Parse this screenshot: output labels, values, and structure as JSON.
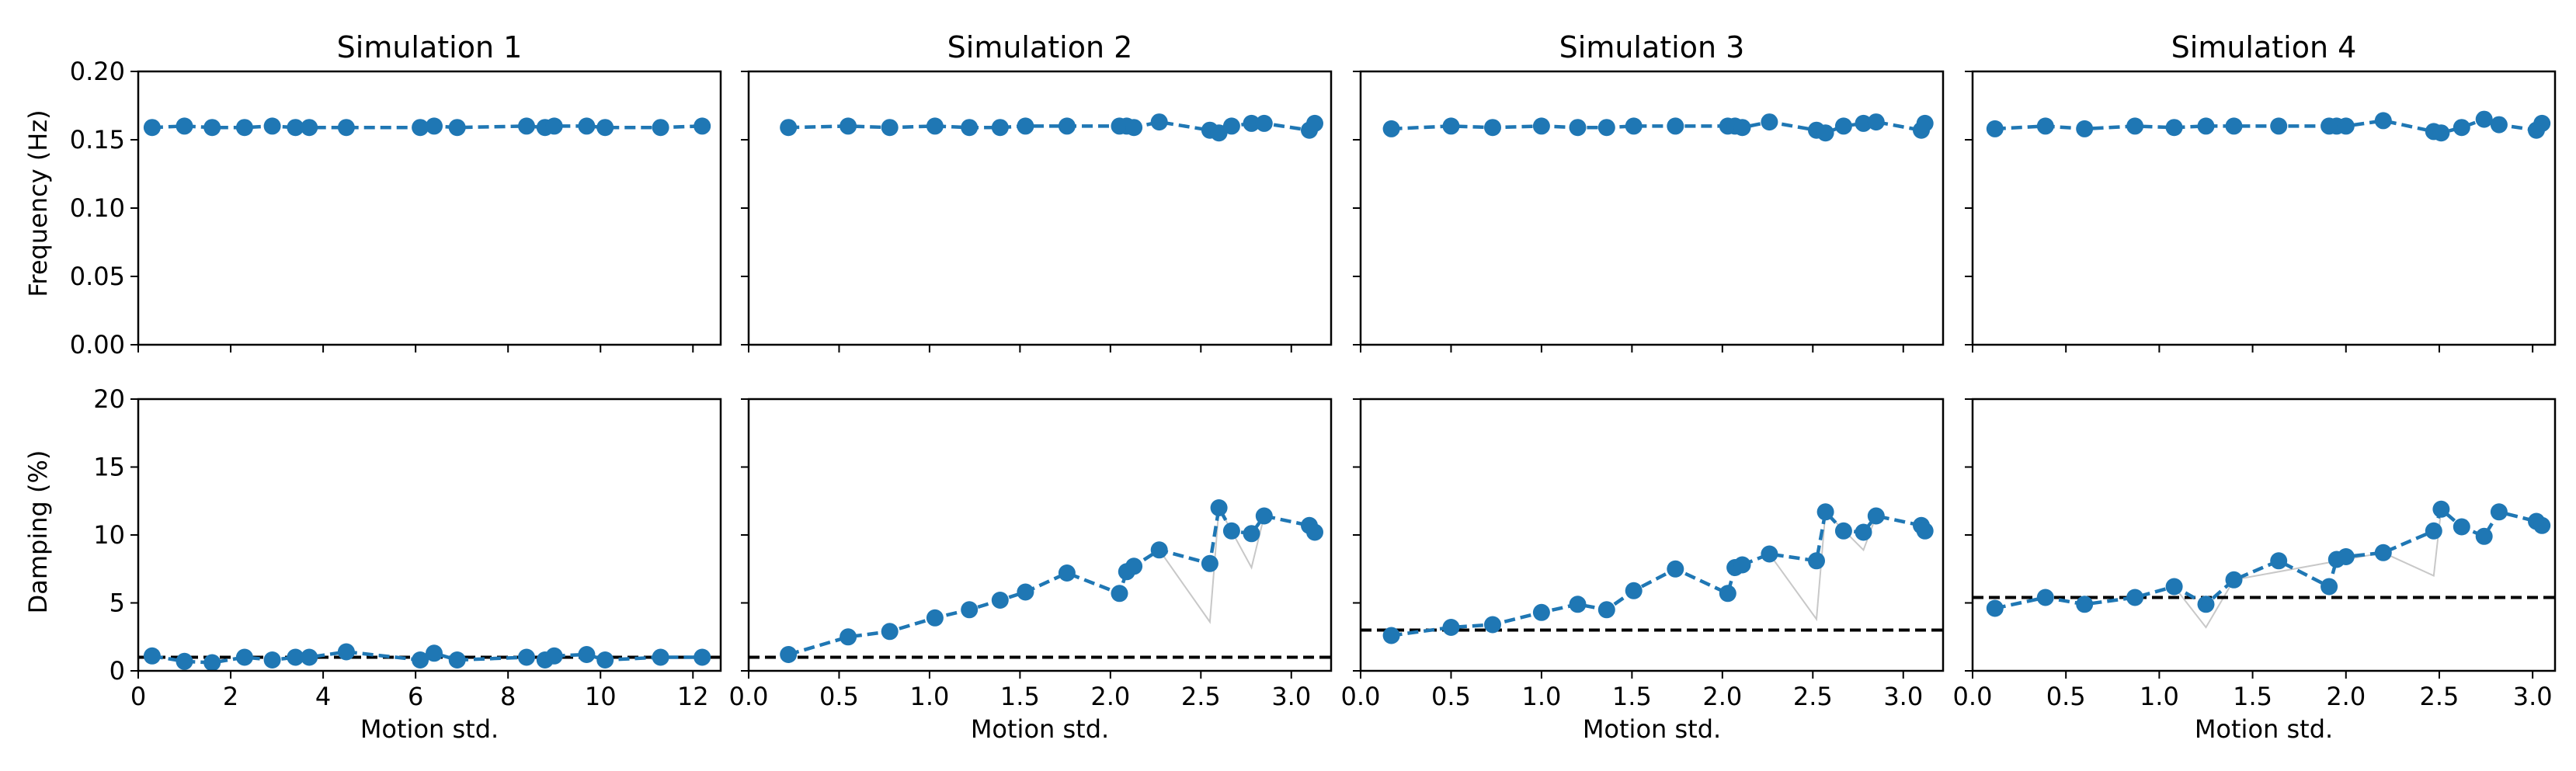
{
  "chart_data": {
    "type": "line",
    "layout": "2 rows x 4 columns, shared y-axis per row",
    "row_ylabels": [
      "Frequency (Hz)",
      "Damping (%)"
    ],
    "xlabel": "Motion std.",
    "freq_ylim": [
      0,
      0.2
    ],
    "freq_yticks": [
      0.0,
      0.05,
      0.1,
      0.15,
      0.2
    ],
    "freq_ytick_labels": [
      "0.00",
      "0.05",
      "0.10",
      "0.15",
      "0.20"
    ],
    "damp_ylim": [
      0,
      20
    ],
    "damp_yticks": [
      0,
      5,
      10,
      15,
      20
    ],
    "damp_ytick_labels": [
      "0",
      "5",
      "10",
      "15",
      "20"
    ],
    "colors": {
      "series": "#1f77b4",
      "reference": "#000000",
      "faint": "#c8c8c8"
    },
    "panels": [
      {
        "title": "Simulation 1",
        "xlim": [
          0,
          12.6
        ],
        "xticks": [
          0,
          2,
          4,
          6,
          8,
          10,
          12
        ],
        "xtick_labels": [
          "0",
          "2",
          "4",
          "6",
          "8",
          "10",
          "12"
        ],
        "reference_damping": 1.0,
        "x": [
          0.3,
          1.0,
          1.6,
          2.3,
          2.9,
          3.4,
          3.7,
          4.5,
          6.1,
          6.4,
          6.9,
          8.4,
          8.8,
          9.0,
          9.7,
          10.1,
          11.3,
          12.2
        ],
        "frequency": [
          0.159,
          0.16,
          0.159,
          0.159,
          0.16,
          0.159,
          0.159,
          0.159,
          0.159,
          0.16,
          0.159,
          0.16,
          0.159,
          0.16,
          0.16,
          0.159,
          0.159,
          0.16
        ],
        "damping": [
          1.1,
          0.7,
          0.6,
          1.0,
          0.8,
          1.0,
          1.0,
          1.4,
          0.8,
          1.3,
          0.8,
          1.0,
          0.8,
          1.1,
          1.2,
          0.8,
          1.0,
          1.0
        ],
        "faint_x": [],
        "faint_damping": []
      },
      {
        "title": "Simulation 2",
        "xlim": [
          0,
          3.22
        ],
        "xticks": [
          0.0,
          0.5,
          1.0,
          1.5,
          2.0,
          2.5,
          3.0
        ],
        "xtick_labels": [
          "0.0",
          "0.5",
          "1.0",
          "1.5",
          "2.0",
          "2.5",
          "3.0"
        ],
        "reference_damping": 1.0,
        "x": [
          0.22,
          0.55,
          0.78,
          1.03,
          1.22,
          1.39,
          1.53,
          1.76,
          2.05,
          2.09,
          2.13,
          2.27,
          2.55,
          2.6,
          2.67,
          2.78,
          2.85,
          3.1,
          3.13
        ],
        "frequency": [
          0.159,
          0.16,
          0.159,
          0.16,
          0.159,
          0.159,
          0.16,
          0.16,
          0.16,
          0.16,
          0.159,
          0.163,
          0.157,
          0.155,
          0.16,
          0.162,
          0.162,
          0.157,
          0.162
        ],
        "damping": [
          1.2,
          2.5,
          2.9,
          3.9,
          4.5,
          5.2,
          5.8,
          7.2,
          5.7,
          7.3,
          7.7,
          8.9,
          7.9,
          12.0,
          10.3,
          10.1,
          11.4,
          10.7,
          10.2
        ],
        "faint_x": [
          2.27,
          2.55,
          2.6,
          2.78,
          2.85
        ],
        "faint_damping": [
          8.9,
          3.6,
          12.0,
          7.6,
          11.4
        ]
      },
      {
        "title": "Simulation 3",
        "xlim": [
          0,
          3.22
        ],
        "xticks": [
          0.0,
          0.5,
          1.0,
          1.5,
          2.0,
          2.5,
          3.0
        ],
        "xtick_labels": [
          "0.0",
          "0.5",
          "1.0",
          "1.5",
          "2.0",
          "2.5",
          "3.0"
        ],
        "reference_damping": 3.0,
        "x": [
          0.17,
          0.5,
          0.73,
          1.0,
          1.2,
          1.36,
          1.51,
          1.74,
          2.03,
          2.07,
          2.11,
          2.26,
          2.52,
          2.57,
          2.67,
          2.78,
          2.85,
          3.1,
          3.12
        ],
        "frequency": [
          0.158,
          0.16,
          0.159,
          0.16,
          0.159,
          0.159,
          0.16,
          0.16,
          0.16,
          0.16,
          0.159,
          0.163,
          0.157,
          0.155,
          0.16,
          0.162,
          0.163,
          0.157,
          0.162
        ],
        "damping": [
          2.6,
          3.2,
          3.4,
          4.3,
          4.9,
          4.5,
          5.9,
          7.5,
          5.7,
          7.6,
          7.8,
          8.6,
          8.1,
          11.7,
          10.3,
          10.2,
          11.4,
          10.7,
          10.3
        ],
        "faint_x": [
          2.26,
          2.52,
          2.57,
          2.78,
          2.85
        ],
        "faint_damping": [
          8.6,
          3.8,
          11.7,
          8.9,
          11.4
        ]
      },
      {
        "title": "Simulation 4",
        "xlim": [
          0,
          3.12
        ],
        "xticks": [
          0.0,
          0.5,
          1.0,
          1.5,
          2.0,
          2.5,
          3.0
        ],
        "xtick_labels": [
          "0.0",
          "0.5",
          "1.0",
          "1.5",
          "2.0",
          "2.5",
          "3.0"
        ],
        "reference_damping": 5.4,
        "x": [
          0.12,
          0.39,
          0.6,
          0.87,
          1.08,
          1.25,
          1.4,
          1.64,
          1.91,
          1.95,
          2.0,
          2.2,
          2.47,
          2.51,
          2.62,
          2.74,
          2.82,
          3.02,
          3.05
        ],
        "frequency": [
          0.158,
          0.16,
          0.158,
          0.16,
          0.159,
          0.16,
          0.16,
          0.16,
          0.16,
          0.16,
          0.16,
          0.164,
          0.156,
          0.155,
          0.159,
          0.165,
          0.161,
          0.157,
          0.162
        ],
        "damping": [
          4.6,
          5.4,
          4.9,
          5.4,
          6.2,
          4.9,
          6.7,
          8.1,
          6.2,
          8.2,
          8.4,
          8.7,
          10.3,
          11.9,
          10.6,
          9.9,
          11.7,
          11.0,
          10.7
        ],
        "faint_x": [
          1.08,
          1.25,
          1.4,
          2.2,
          2.47,
          2.51
        ],
        "faint_damping": [
          6.2,
          3.2,
          6.7,
          8.7,
          7.0,
          11.9
        ]
      }
    ]
  }
}
